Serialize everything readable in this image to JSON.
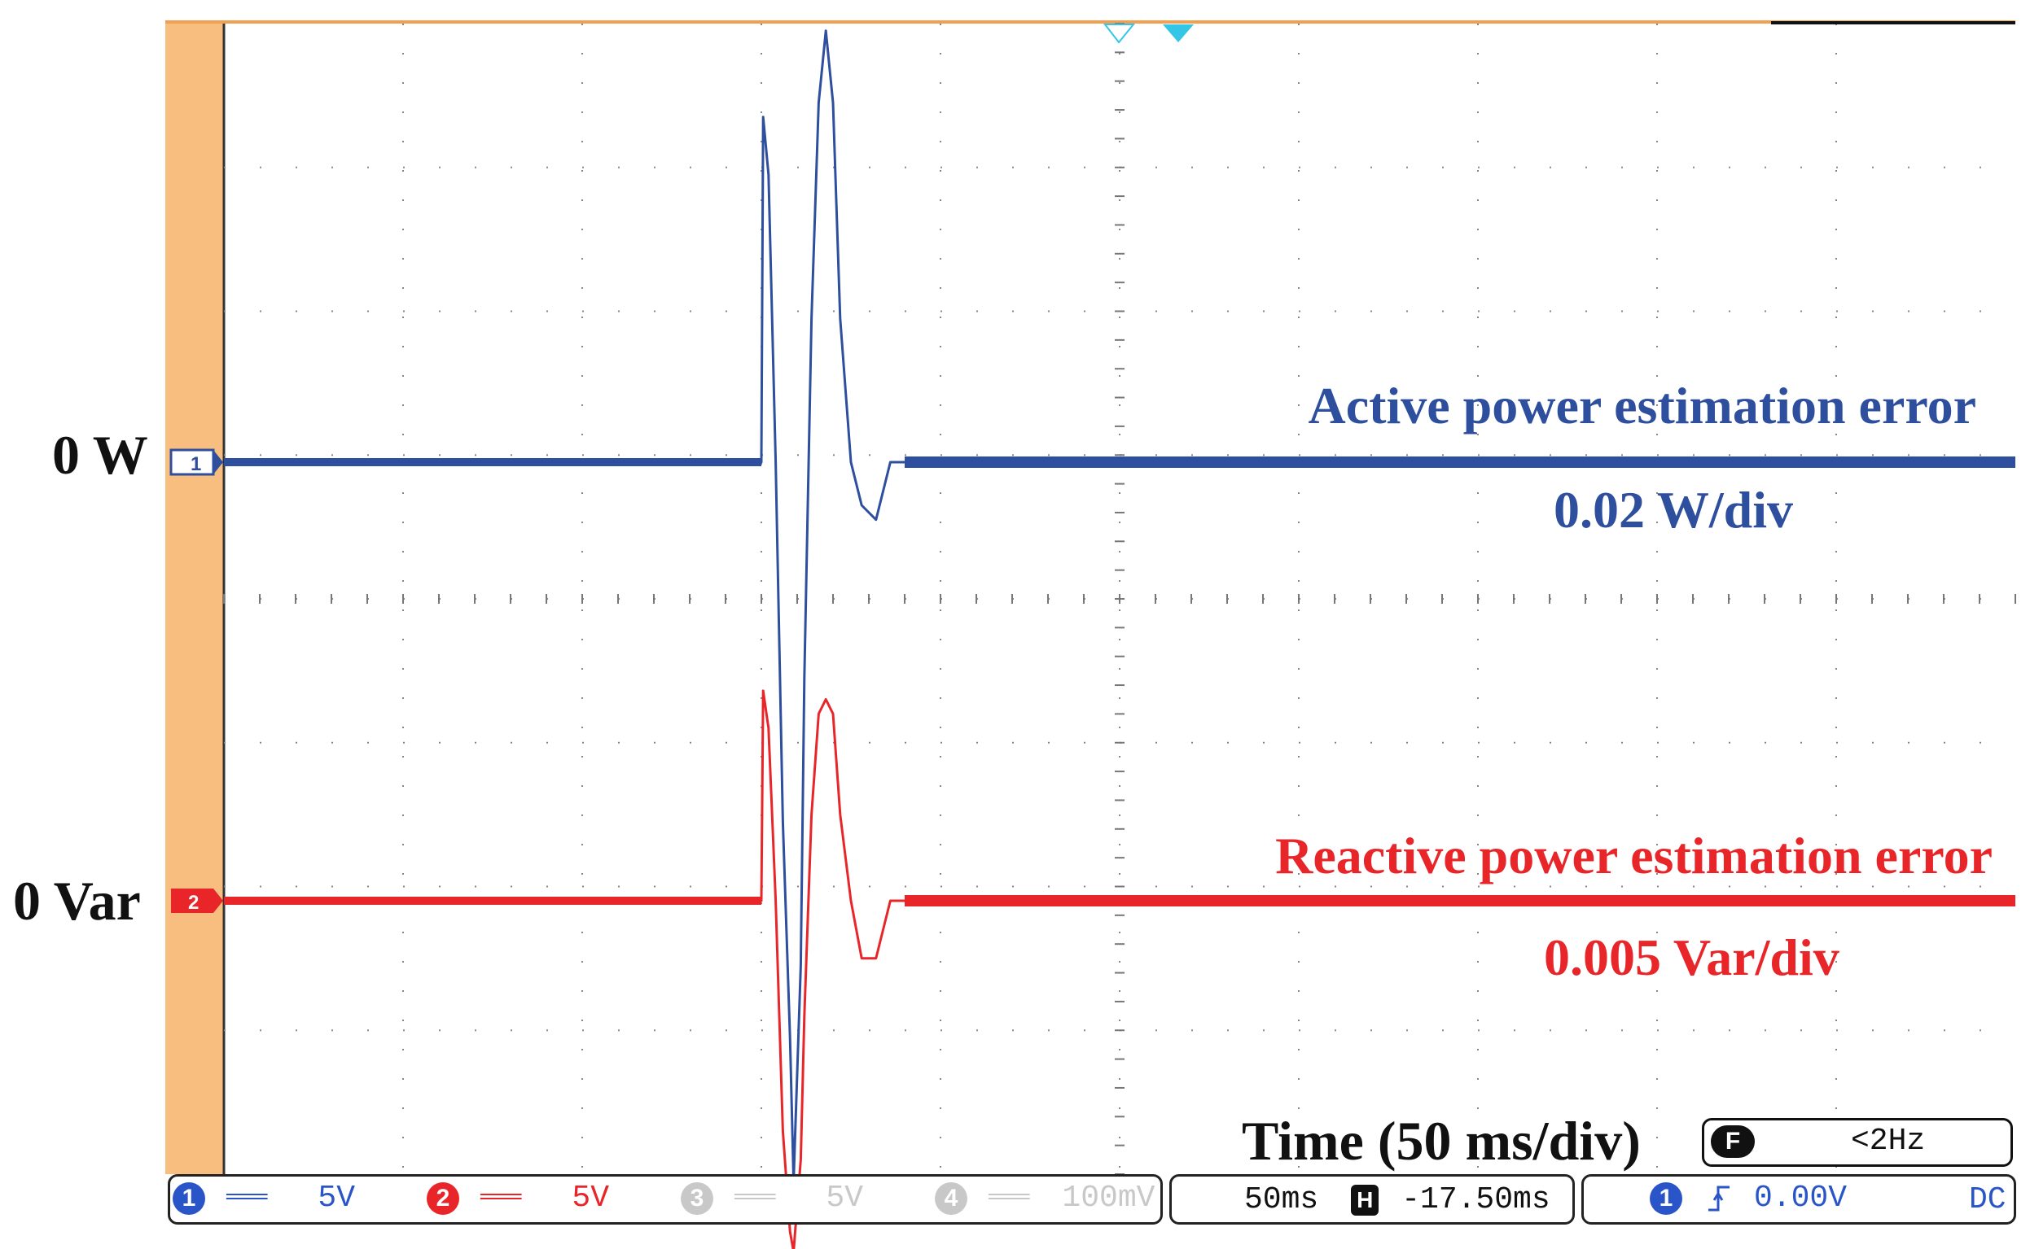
{
  "chart_data": {
    "type": "line",
    "xlabel": "Time (50 ms/div)",
    "channels": [
      {
        "name": "Active power estimation error",
        "scale": "0.02 W/div",
        "zero_label": "0 W",
        "marker": "1",
        "color": "#2e4e9e",
        "x": [
          0,
          150,
          150.5,
          152,
          154,
          156,
          158,
          159,
          161,
          162,
          164,
          166,
          168,
          170,
          172,
          175,
          178,
          182,
          184,
          186,
          190,
          200,
          500
        ],
        "y": [
          0,
          0,
          0.048,
          0.04,
          0.0,
          -0.05,
          -0.08,
          -0.1,
          -0.07,
          -0.03,
          0.02,
          0.05,
          0.06,
          0.05,
          0.02,
          0.0,
          -0.006,
          -0.008,
          -0.004,
          0.0,
          0.0,
          0.0,
          0.0
        ]
      },
      {
        "name": "Reactive power estimation error",
        "scale": "0.005 Var/div",
        "zero_label": "0 Var",
        "marker": "2",
        "color": "#e8262a",
        "x": [
          0,
          150,
          150.5,
          152,
          154,
          156,
          158,
          159,
          161,
          162,
          164,
          166,
          168,
          170,
          172,
          175,
          178,
          182,
          184,
          186,
          190,
          200,
          500
        ],
        "y": [
          0,
          0,
          0.0073,
          0.006,
          0.0,
          -0.008,
          -0.0115,
          -0.0122,
          -0.009,
          -0.004,
          0.003,
          0.0065,
          0.007,
          0.0065,
          0.003,
          0.0,
          -0.002,
          -0.002,
          -0.001,
          0.0,
          0.0,
          0.0,
          0.0
        ]
      }
    ],
    "xlim": [
      0,
      500
    ],
    "divisions": {
      "horizontal": 10,
      "vertical": 8
    },
    "grid": true
  },
  "status_bar": {
    "ch1": {
      "number": "1",
      "coupling": "═══",
      "volts": "5V",
      "color": "#2a55c8"
    },
    "ch2": {
      "number": "2",
      "coupling": "═══",
      "volts": "5V",
      "color": "#e8262a"
    },
    "ch3": {
      "number": "3",
      "coupling": "═══",
      "volts": "5V",
      "color": "#c8c8c8"
    },
    "ch4": {
      "number": "4",
      "coupling": "═══",
      "volts": "100mV",
      "color": "#c8c8c8"
    },
    "timebase": "50ms",
    "h_icon": "H",
    "h_offset": "-17.50ms",
    "trigger_channel": "1",
    "trigger_slope_icon": "rising-edge-icon",
    "trigger_level": "0.00V",
    "coupling_mode": "DC"
  },
  "frequency_readout": {
    "icon": "F",
    "value": "<2Hz"
  }
}
